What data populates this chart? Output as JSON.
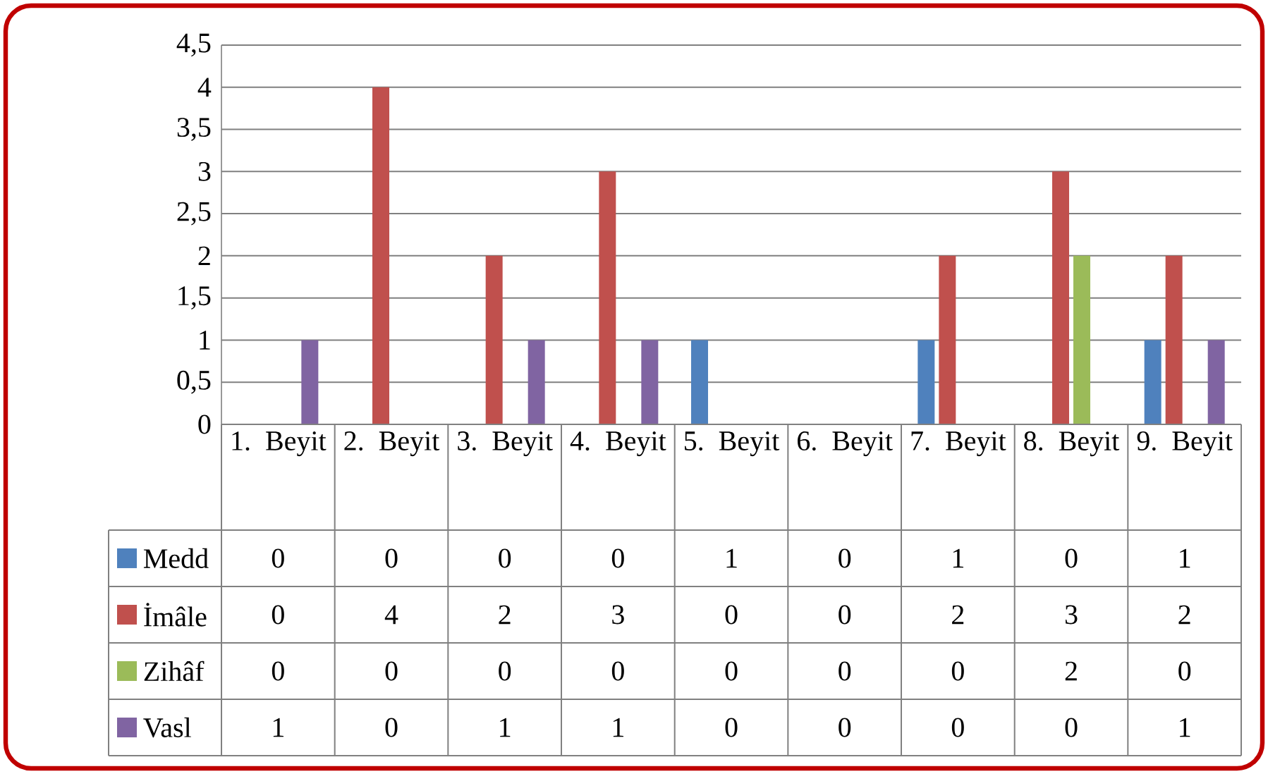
{
  "chart_data": {
    "type": "bar",
    "categories": [
      "1. Beyit",
      "2. Beyit",
      "3. Beyit",
      "4. Beyit",
      "5. Beyit",
      "6. Beyit",
      "7. Beyit",
      "8. Beyit",
      "9. Beyit"
    ],
    "series": [
      {
        "name": "Medd",
        "color": "#4f81bd",
        "values": [
          0,
          0,
          0,
          0,
          1,
          0,
          1,
          0,
          1
        ]
      },
      {
        "name": "İmâle",
        "color": "#c0504d",
        "values": [
          0,
          4,
          2,
          3,
          0,
          0,
          2,
          3,
          2
        ]
      },
      {
        "name": "Zihâf",
        "color": "#9bbb59",
        "values": [
          0,
          0,
          0,
          0,
          0,
          0,
          0,
          2,
          0
        ]
      },
      {
        "name": "Vasl",
        "color": "#8064a2",
        "values": [
          1,
          0,
          1,
          1,
          0,
          0,
          0,
          0,
          1
        ]
      }
    ],
    "ylim": [
      0,
      4.5
    ],
    "yticks": [
      0,
      {
        "value": 0.5,
        "label": "0,5"
      },
      1,
      {
        "value": 1.5,
        "label": "1,5"
      },
      2,
      {
        "value": 2.5,
        "label": "2,5"
      },
      3,
      {
        "value": 3.5,
        "label": "3,5"
      },
      4,
      {
        "value": 4.5,
        "label": "4,5"
      }
    ],
    "grid": "y",
    "legend": "bottom left",
    "data_labels": true
  }
}
